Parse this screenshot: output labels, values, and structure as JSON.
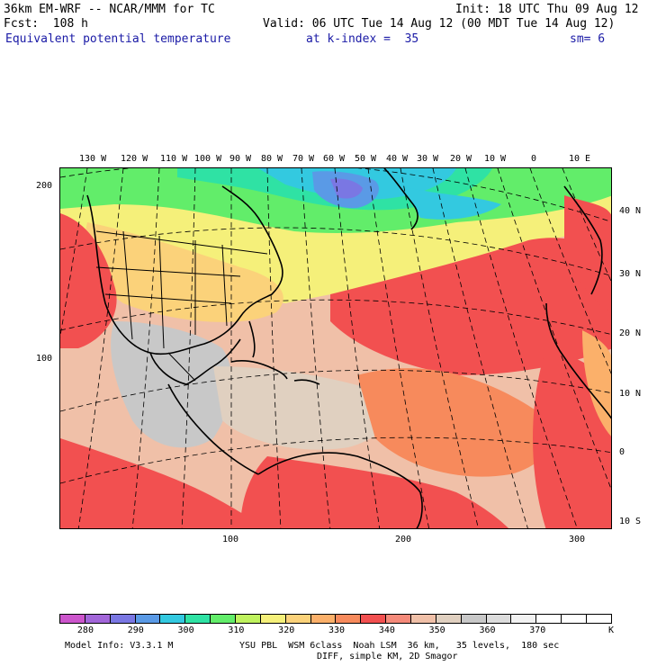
{
  "header": {
    "model": "36km EM-WRF -- NCAR/MMM for TC",
    "init": "Init: 18 UTC Thu 09 Aug 12",
    "fcst": "Fcst:  108 h",
    "valid": "Valid: 06 UTC Tue 14 Aug 12 (00 MDT Tue 14 Aug 12)",
    "field": "Equivalent potential temperature",
    "level": "at k-index =  35",
    "smooth": "sm= 6"
  },
  "map": {
    "top_lon_labels": [
      "130 W",
      "120 W",
      "110 W",
      "100 W",
      "90 W",
      "80 W",
      "70 W",
      "60 W",
      "50 W",
      "40 W",
      "30 W",
      "20 W",
      "10 W",
      "0",
      "10 E"
    ],
    "right_lat_labels": [
      "40 N",
      "30 N",
      "20 N",
      "10 N",
      "0",
      "10 S"
    ],
    "left_grid_labels": [
      "200",
      "100"
    ],
    "bottom_grid_labels": [
      "100",
      "200",
      "300"
    ]
  },
  "colorbar": {
    "colors": [
      "#cc55cc",
      "#a266d9",
      "#7a77e3",
      "#5a9ae6",
      "#33c9e0",
      "#2fe2a4",
      "#62ed6a",
      "#bff25e",
      "#f5f07a",
      "#fbd27a",
      "#fbb06a",
      "#f78a5c",
      "#f25050",
      "#f58a7a",
      "#f0c0a8",
      "#e0d0c0",
      "#c8c8c8",
      "#dcdcdc",
      "#f2f2f2",
      "#ffffff",
      "#ffffff",
      "#ffffff"
    ],
    "labels": [
      "280",
      "290",
      "300",
      "310",
      "320",
      "330",
      "340",
      "350",
      "360",
      "370"
    ],
    "unit": "K"
  },
  "footer": {
    "line1_left": "Model Info: V3.3.1 M",
    "line1_right": "YSU PBL  WSM 6class  Noah LSM  36 km,   35 levels,  180 sec",
    "line2": "DIFF, simple KM, 2D Smagor"
  }
}
